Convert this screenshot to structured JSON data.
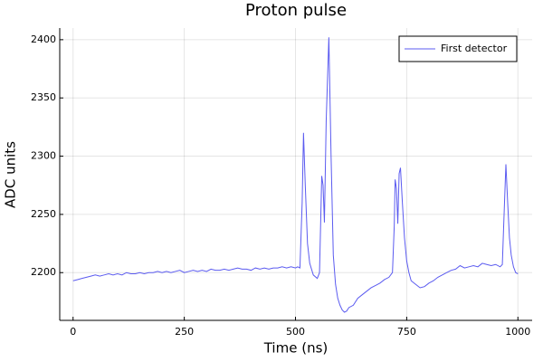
{
  "chart_data": {
    "type": "line",
    "title": "Proton pulse",
    "x_label": "Time (ns)",
    "y_label": "ADC units",
    "x": [
      0,
      10,
      20,
      30,
      40,
      50,
      60,
      70,
      80,
      90,
      100,
      110,
      120,
      130,
      140,
      150,
      160,
      170,
      180,
      190,
      200,
      210,
      220,
      230,
      240,
      250,
      260,
      270,
      280,
      290,
      300,
      310,
      320,
      330,
      340,
      350,
      360,
      370,
      380,
      390,
      400,
      410,
      420,
      430,
      440,
      450,
      460,
      470,
      480,
      490,
      500,
      505,
      510,
      515,
      518,
      522,
      527,
      532,
      540,
      549,
      554,
      559,
      562,
      565,
      569,
      575,
      580,
      585,
      590,
      595,
      600,
      605,
      610,
      615,
      620,
      630,
      640,
      650,
      660,
      670,
      680,
      690,
      700,
      710,
      718,
      722,
      724,
      727,
      730,
      733,
      736,
      740,
      745,
      750,
      755,
      760,
      770,
      780,
      790,
      800,
      810,
      820,
      830,
      840,
      850,
      860,
      870,
      880,
      890,
      900,
      910,
      920,
      930,
      940,
      950,
      960,
      965,
      968,
      973,
      977,
      981,
      985,
      990,
      995,
      1000
    ],
    "series": [
      {
        "name": "First detector",
        "color": "#5b5bf0",
        "values": [
          2193,
          2194,
          2195,
          2196,
          2197,
          2198,
          2197,
          2198,
          2199,
          2198,
          2199,
          2198,
          2200,
          2199,
          2199,
          2200,
          2199,
          2200,
          2200,
          2201,
          2200,
          2201,
          2200,
          2201,
          2202,
          2200,
          2201,
          2202,
          2201,
          2202,
          2201,
          2203,
          2202,
          2202,
          2203,
          2202,
          2203,
          2204,
          2203,
          2203,
          2202,
          2204,
          2203,
          2204,
          2203,
          2204,
          2204,
          2205,
          2204,
          2205,
          2204,
          2205,
          2204,
          2260,
          2320,
          2275,
          2225,
          2208,
          2198,
          2195,
          2200,
          2283,
          2275,
          2243,
          2330,
          2402,
          2300,
          2215,
          2190,
          2178,
          2172,
          2168,
          2166,
          2167,
          2170,
          2172,
          2178,
          2181,
          2184,
          2187,
          2189,
          2191,
          2194,
          2196,
          2200,
          2240,
          2280,
          2272,
          2242,
          2285,
          2290,
          2262,
          2230,
          2210,
          2200,
          2193,
          2190,
          2187,
          2188,
          2191,
          2193,
          2196,
          2198,
          2200,
          2202,
          2203,
          2206,
          2204,
          2205,
          2206,
          2205,
          2208,
          2207,
          2206,
          2207,
          2205,
          2207,
          2240,
          2293,
          2260,
          2230,
          2215,
          2205,
          2200,
          2199
        ]
      }
    ],
    "xlim": [
      -30,
      1032
    ],
    "ylim": [
      2159,
      2410
    ],
    "xticks": [
      0,
      250,
      500,
      750,
      1000
    ],
    "yticks": [
      2200,
      2250,
      2300,
      2350,
      2400
    ],
    "grid": true,
    "legend": "top-right"
  }
}
